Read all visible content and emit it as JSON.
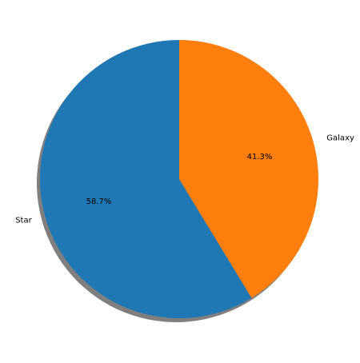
{
  "chart_data": {
    "type": "pie",
    "categories": [
      "Star",
      "Galaxy"
    ],
    "values": [
      58.7,
      41.3
    ],
    "percent_labels": [
      "58.7%",
      "41.3%"
    ],
    "colors": [
      "#1f77b4",
      "#ff7f0e"
    ],
    "start_angle_deg": 90,
    "direction": "counterclockwise",
    "shadow": true,
    "title": ""
  }
}
